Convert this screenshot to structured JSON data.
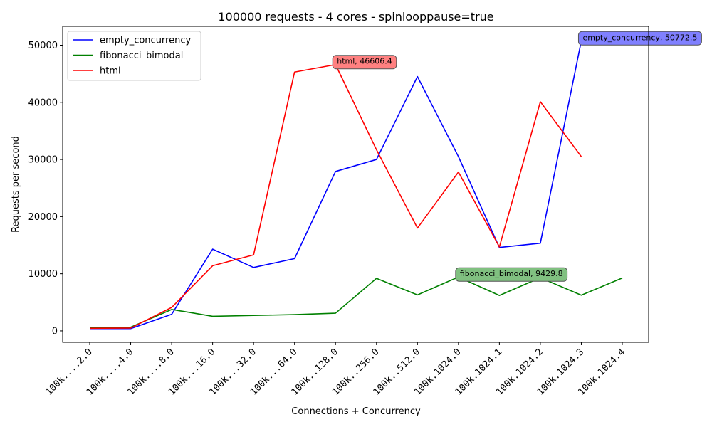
{
  "chart_data": {
    "type": "line",
    "title": "100000 requests - 4 cores - spinlooppause=true",
    "xlabel": "Connections + Concurrency",
    "ylabel": "Requests per second",
    "categories": [
      "100k....2.0",
      "100k....4.0",
      "100k....8.0",
      "100k...16.0",
      "100k...32.0",
      "100k...64.0",
      "100k..128.0",
      "100k..256.0",
      "100k..512.0",
      "100k.1024.0",
      "100k.1024.1",
      "100k.1024.2",
      "100k.1024.3",
      "100k.1024.4"
    ],
    "ylim": [
      -2000,
      53300
    ],
    "yticks": [
      0,
      10000,
      20000,
      30000,
      40000,
      50000
    ],
    "grid": false,
    "legend_position": "top-left",
    "series": [
      {
        "name": "empty_concurrency",
        "color": "#0000ff",
        "values": [
          400,
          400,
          2900,
          14300,
          11100,
          12650,
          27900,
          30000,
          44500,
          30500,
          14600,
          15350,
          50772.5,
          null
        ]
      },
      {
        "name": "fibonacci_bimodal",
        "color": "#008000",
        "values": [
          600,
          650,
          3750,
          2550,
          2700,
          2850,
          3100,
          9200,
          6300,
          9429.8,
          6200,
          9300,
          6250,
          9250
        ]
      },
      {
        "name": "html",
        "color": "#ff0000",
        "values": [
          450,
          500,
          4100,
          11400,
          13300,
          45300,
          46606.4,
          31700,
          18000,
          27800,
          14700,
          40100,
          30500,
          null
        ]
      }
    ],
    "annotations": [
      {
        "series": "html",
        "index": 6,
        "text": "html, 46606.4",
        "bg": "#ff8080"
      },
      {
        "series": "fibonacci_bimodal",
        "index": 9,
        "text": "fibonacci_bimodal, 9429.8",
        "bg": "#80c080"
      },
      {
        "series": "empty_concurrency",
        "index": 12,
        "text": "empty_concurrency, 50772.5",
        "bg": "#8080ff"
      }
    ]
  }
}
